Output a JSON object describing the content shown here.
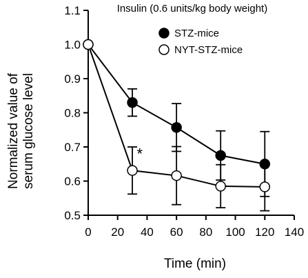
{
  "chart_data": {
    "type": "line",
    "title": "Insulin (0.6 units/kg body weight)",
    "xlabel": "Time (min)",
    "ylabel_lines": [
      "Normalized value of",
      "serum glucose level"
    ],
    "xlim": [
      0,
      140
    ],
    "ylim": [
      0.5,
      1.1
    ],
    "x_ticks": [
      0,
      20,
      40,
      60,
      80,
      100,
      120,
      140
    ],
    "y_ticks": [
      0.5,
      0.6,
      0.7,
      0.8,
      0.9,
      1.0,
      1.1
    ],
    "y_tick_labels": [
      "0.5",
      "0.6",
      "0.7",
      "0.8",
      "0.9",
      "1.0",
      "1.1"
    ],
    "grid": false,
    "legend_position": "top-right",
    "series": [
      {
        "name": "STZ-mice",
        "marker": "filled-circle",
        "color": "#000000",
        "x": [
          0,
          30,
          60,
          90,
          120
        ],
        "y": [
          1.0,
          0.83,
          0.757,
          0.675,
          0.65
        ],
        "error": [
          0,
          0.04,
          0.07,
          0.072,
          0.095
        ]
      },
      {
        "name": "NYT-STZ-mice",
        "marker": "open-circle",
        "color": "#000000",
        "x": [
          0,
          30,
          60,
          90,
          120
        ],
        "y": [
          1.0,
          0.631,
          0.616,
          0.585,
          0.583
        ],
        "error": [
          0,
          0.069,
          0.085,
          0.063,
          0.07
        ]
      }
    ],
    "annotations": [
      {
        "text": "*",
        "x": 33,
        "y": 0.655
      }
    ]
  }
}
